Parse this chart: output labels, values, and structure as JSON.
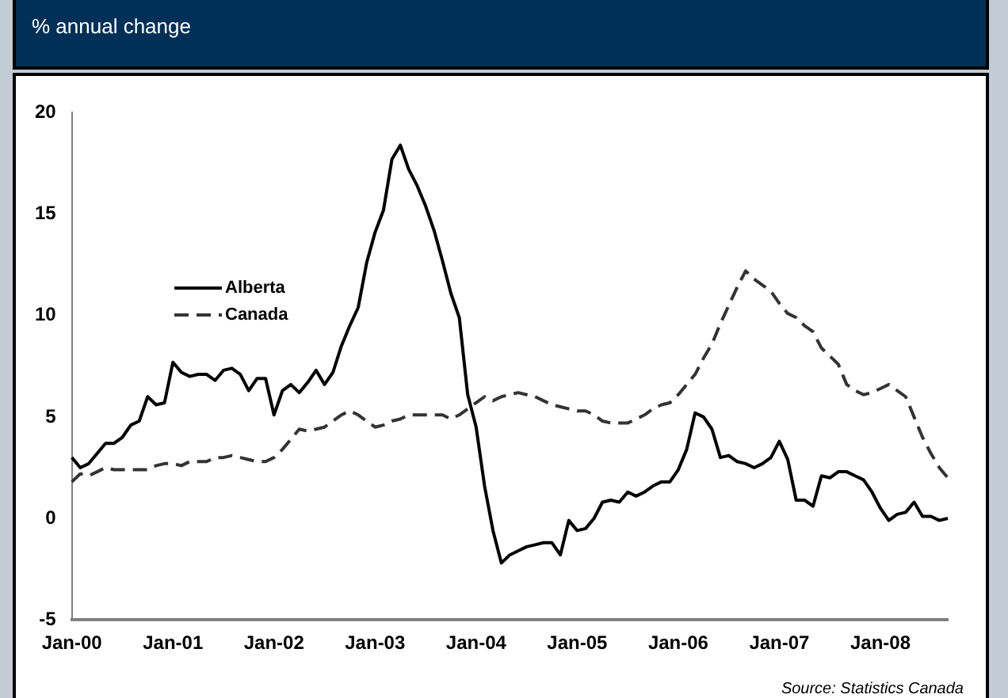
{
  "chart_data": {
    "type": "line",
    "subtitle": "% annual change",
    "categories": [
      "Jan-00",
      null,
      null,
      null,
      null,
      null,
      null,
      null,
      null,
      null,
      null,
      null,
      "Jan-01",
      null,
      null,
      null,
      null,
      null,
      null,
      null,
      null,
      null,
      null,
      null,
      "Jan-02",
      null,
      null,
      null,
      null,
      null,
      null,
      null,
      null,
      null,
      null,
      null,
      "Jan-03",
      null,
      null,
      null,
      null,
      null,
      null,
      null,
      null,
      null,
      null,
      null,
      "Jan-04",
      null,
      null,
      null,
      null,
      null,
      null,
      null,
      null,
      null,
      null,
      null,
      "Jan-05",
      null,
      null,
      null,
      null,
      null,
      null,
      null,
      null,
      null,
      null,
      null,
      "Jan-06",
      null,
      null,
      null,
      null,
      null,
      null,
      null,
      null,
      null,
      null,
      null,
      "Jan-07",
      null,
      null,
      null,
      null,
      null,
      null,
      null,
      null,
      null,
      null,
      null,
      "Jan-08",
      null,
      null,
      null,
      null,
      null,
      null,
      null,
      null
    ],
    "series": [
      {
        "name": "Alberta",
        "color": "#000000",
        "line_style": "solid",
        "values": [
          3.0,
          2.5,
          2.7,
          3.2,
          3.7,
          3.7,
          4.0,
          4.6,
          4.8,
          6.0,
          5.6,
          5.7,
          7.7,
          7.2,
          7.0,
          7.1,
          7.1,
          6.8,
          7.3,
          7.4,
          7.1,
          6.3,
          6.9,
          6.9,
          5.1,
          6.3,
          6.6,
          6.2,
          6.7,
          7.3,
          6.6,
          7.2,
          8.5,
          9.5,
          10.4,
          12.6,
          14.1,
          15.2,
          17.7,
          18.4,
          17.2,
          16.4,
          15.4,
          14.2,
          12.7,
          11.1,
          9.9,
          6.1,
          4.5,
          1.6,
          -0.6,
          -2.2,
          -1.8,
          -1.6,
          -1.4,
          -1.3,
          -1.2,
          -1.2,
          -1.8,
          -0.1,
          -0.6,
          -0.5,
          0.0,
          0.8,
          0.9,
          0.8,
          1.3,
          1.1,
          1.3,
          1.6,
          1.8,
          1.8,
          2.4,
          3.4,
          5.2,
          5.0,
          4.4,
          3.0,
          3.1,
          2.8,
          2.7,
          2.5,
          2.7,
          3.0,
          3.8,
          2.9,
          0.9,
          0.9,
          0.6,
          2.1,
          2.0,
          2.3,
          2.3,
          2.1,
          1.9,
          1.3,
          0.5,
          -0.1,
          0.2,
          0.3,
          0.8,
          0.1,
          0.1,
          -0.1,
          0.0
        ]
      },
      {
        "name": "Canada",
        "color": "#333333",
        "line_style": "dashed",
        "values": [
          1.8,
          2.2,
          2.1,
          2.3,
          2.5,
          2.4,
          2.4,
          2.4,
          2.4,
          2.4,
          2.6,
          2.7,
          2.7,
          2.6,
          2.8,
          2.8,
          2.8,
          3.0,
          3.0,
          3.1,
          3.0,
          2.9,
          2.8,
          2.8,
          3.0,
          3.4,
          3.9,
          4.4,
          4.3,
          4.4,
          4.5,
          4.8,
          5.1,
          5.3,
          5.1,
          4.8,
          4.5,
          4.6,
          4.8,
          4.9,
          5.1,
          5.1,
          5.1,
          5.1,
          5.1,
          4.9,
          5.1,
          5.4,
          5.7,
          6.0,
          5.8,
          6.0,
          6.1,
          6.2,
          6.1,
          6.0,
          5.8,
          5.6,
          5.5,
          5.4,
          5.3,
          5.3,
          5.1,
          4.8,
          4.7,
          4.7,
          4.7,
          4.9,
          5.1,
          5.4,
          5.6,
          5.7,
          6.1,
          6.6,
          7.1,
          7.9,
          8.6,
          9.6,
          10.5,
          11.4,
          12.2,
          11.8,
          11.5,
          11.2,
          10.6,
          10.1,
          9.9,
          9.5,
          9.2,
          8.4,
          8.0,
          7.6,
          6.6,
          6.3,
          6.1,
          6.2,
          6.4,
          6.6,
          6.3,
          6.0,
          5.0,
          4.0,
          3.2,
          2.5,
          2.0
        ]
      }
    ],
    "ylim": [
      -5,
      20
    ],
    "yticks": [
      -5,
      0,
      5,
      10,
      15,
      20
    ],
    "grid": false,
    "legend": "top left",
    "annotations": [
      "Source: Statistics Canada"
    ]
  }
}
